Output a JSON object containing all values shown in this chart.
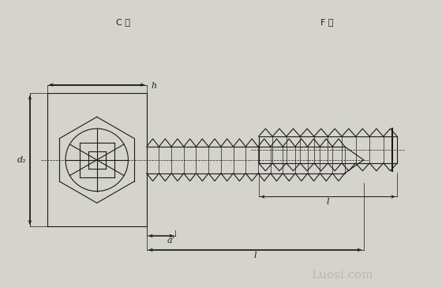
{
  "bg_color": "#d4d4cc",
  "line_color": "#1a1a1a",
  "title_C": "C 型",
  "title_F": "F 型",
  "label_h": "h",
  "label_d2": "d₂",
  "label_a": "a’",
  "label_l": "l",
  "watermark": "Luosi.com",
  "fig_width": 5.6,
  "fig_height": 3.64
}
